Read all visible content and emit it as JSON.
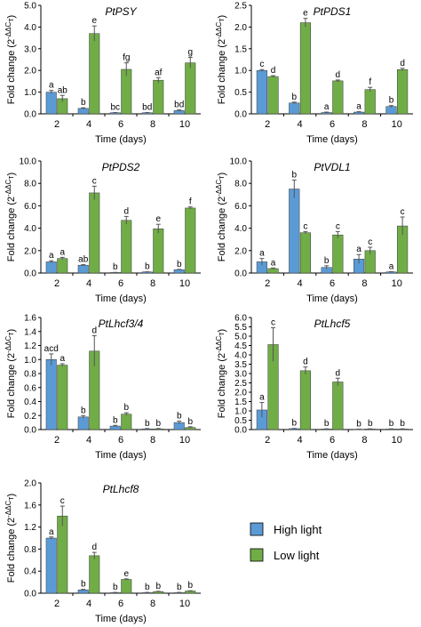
{
  "colors": {
    "high_light": "#5b9bd5",
    "low_light": "#70ad47",
    "axis": "#000000",
    "error_bar": "#555555"
  },
  "legend": {
    "items": [
      {
        "label": "High light",
        "color": "#5b9bd5"
      },
      {
        "label": "Low light",
        "color": "#70ad47"
      }
    ]
  },
  "chart_data": [
    {
      "type": "bar",
      "title": "PtPSY",
      "xlabel": "Time (days)",
      "ylabel_main": "Fold change (2",
      "ylabel_sup": "-ΔΔC",
      "ylabel_sub": "T",
      "ylabel_end": ")",
      "categories": [
        "2",
        "4",
        "6",
        "8",
        "10"
      ],
      "ylim": [
        0,
        5
      ],
      "yticks": [
        "0.0",
        "1.0",
        "2.0",
        "3.0",
        "4.0",
        "5.0"
      ],
      "series": [
        {
          "name": "High light",
          "values": [
            1.0,
            0.25,
            0.05,
            0.05,
            0.15
          ],
          "errors": [
            0.08,
            0.03,
            0.01,
            0.01,
            0.03
          ]
        },
        {
          "name": "Low light",
          "values": [
            0.7,
            3.7,
            2.05,
            1.55,
            2.35
          ],
          "errors": [
            0.15,
            0.35,
            0.3,
            0.12,
            0.25
          ]
        }
      ],
      "sig_labels": [
        "a",
        "ab",
        "b",
        "e",
        "bc",
        "fg",
        "bd",
        "af",
        "bd",
        "g"
      ]
    },
    {
      "type": "bar",
      "title": "PtPDS1",
      "xlabel": "Time (days)",
      "ylabel_main": "Fold change (2",
      "ylabel_sup": "-ΔΔC",
      "ylabel_sub": "T",
      "ylabel_end": ")",
      "categories": [
        "2",
        "4",
        "6",
        "8",
        "10"
      ],
      "ylim": [
        0,
        2.5
      ],
      "yticks": [
        "0.0",
        "0.5",
        "1.0",
        "1.5",
        "2.0",
        "2.5"
      ],
      "series": [
        {
          "name": "High light",
          "values": [
            1.0,
            0.25,
            0.03,
            0.04,
            0.17
          ],
          "errors": [
            0.02,
            0.02,
            0.01,
            0.01,
            0.02
          ]
        },
        {
          "name": "Low light",
          "values": [
            0.86,
            2.1,
            0.76,
            0.56,
            1.02
          ],
          "errors": [
            0.02,
            0.1,
            0.02,
            0.05,
            0.03
          ]
        }
      ],
      "sig_labels": [
        "c",
        "d",
        "b",
        "e",
        "a",
        "d",
        "a",
        "f",
        "b",
        "d"
      ]
    },
    {
      "type": "bar",
      "title": "PtPDS2",
      "xlabel": "Time (days)",
      "ylabel_main": "Fold change (2",
      "ylabel_sup": "-ΔΔC",
      "ylabel_sub": "T",
      "ylabel_end": ")",
      "categories": [
        "2",
        "4",
        "6",
        "8",
        "10"
      ],
      "ylim": [
        0,
        10
      ],
      "yticks": [
        "0.0",
        "2.0",
        "4.0",
        "6.0",
        "8.0",
        "10.0"
      ],
      "series": [
        {
          "name": "High light",
          "values": [
            1.0,
            0.7,
            0.05,
            0.1,
            0.3
          ],
          "errors": [
            0.1,
            0.05,
            0.01,
            0.01,
            0.03
          ]
        },
        {
          "name": "Low light",
          "values": [
            1.3,
            7.15,
            4.7,
            3.95,
            5.8
          ],
          "errors": [
            0.1,
            0.6,
            0.35,
            0.4,
            0.1
          ]
        }
      ],
      "sig_labels": [
        "a",
        "a",
        "ab",
        "c",
        "b",
        "d",
        "b",
        "e",
        "b",
        "f"
      ]
    },
    {
      "type": "bar",
      "title": "PtVDL1",
      "xlabel": "Time (days)",
      "ylabel_main": "Fold change (2",
      "ylabel_sup": "-ΔΔC",
      "ylabel_sub": "T",
      "ylabel_end": ")",
      "categories": [
        "2",
        "4",
        "6",
        "8",
        "10"
      ],
      "ylim": [
        0,
        10
      ],
      "yticks": [
        "0.0",
        "2.0",
        "4.0",
        "6.0",
        "8.0",
        "10.0"
      ],
      "series": [
        {
          "name": "High light",
          "values": [
            1.0,
            7.5,
            0.5,
            1.25,
            0.1
          ],
          "errors": [
            0.3,
            0.8,
            0.15,
            0.4,
            0.02
          ]
        },
        {
          "name": "Low light",
          "values": [
            0.4,
            3.6,
            3.4,
            2.0,
            4.2
          ],
          "errors": [
            0.05,
            0.1,
            0.3,
            0.3,
            0.8
          ]
        }
      ],
      "sig_labels": [
        "a",
        "a",
        "b",
        "c",
        "b",
        "c",
        "a",
        "c",
        "a",
        "c"
      ]
    },
    {
      "type": "bar",
      "title": "PtLhcf3/4",
      "xlabel": "Time (days)",
      "ylabel_main": "Fold change (2",
      "ylabel_sup": "-ΔΔC",
      "ylabel_sub": "T",
      "ylabel_end": ")",
      "categories": [
        "2",
        "4",
        "6",
        "8",
        "10"
      ],
      "ylim": [
        0,
        1.6
      ],
      "yticks": [
        "0.0",
        "0.2",
        "0.4",
        "0.6",
        "0.8",
        "1.0",
        "1.2",
        "1.4",
        "1.6"
      ],
      "series": [
        {
          "name": "High light",
          "values": [
            1.0,
            0.18,
            0.05,
            0.01,
            0.1
          ],
          "errors": [
            0.08,
            0.02,
            0.01,
            0.005,
            0.02
          ]
        },
        {
          "name": "Low light",
          "values": [
            0.92,
            1.12,
            0.22,
            0.01,
            0.03
          ],
          "errors": [
            0.02,
            0.22,
            0.02,
            0.005,
            0.01
          ]
        }
      ],
      "sig_labels": [
        "acd",
        "a",
        "b",
        "d",
        "b",
        "b",
        "b",
        "b",
        "b",
        "b"
      ]
    },
    {
      "type": "bar",
      "title": "PtLhcf5",
      "xlabel": "Time (days)",
      "ylabel_main": "Fold change (2",
      "ylabel_sup": "-ΔΔC",
      "ylabel_sub": "T",
      "ylabel_end": ")",
      "categories": [
        "2",
        "4",
        "6",
        "8",
        "10"
      ],
      "ylim": [
        0,
        6
      ],
      "yticks": [
        "0.0",
        "0.5",
        "1.0",
        "1.5",
        "2.0",
        "2.5",
        "3.0",
        "3.5",
        "4.0",
        "4.5",
        "5.0",
        "5.5",
        "6.0"
      ],
      "series": [
        {
          "name": "High light",
          "values": [
            1.05,
            0.05,
            0.03,
            0.02,
            0.03
          ],
          "errors": [
            0.4,
            0.01,
            0.01,
            0.005,
            0.01
          ]
        },
        {
          "name": "Low light",
          "values": [
            4.55,
            3.15,
            2.55,
            0.03,
            0.03
          ],
          "errors": [
            0.9,
            0.2,
            0.2,
            0.01,
            0.01
          ]
        }
      ],
      "sig_labels": [
        "a",
        "c",
        "b",
        "d",
        "b",
        "d",
        "b",
        "b",
        "b",
        "b"
      ]
    },
    {
      "type": "bar",
      "title": "PtLhcf8",
      "xlabel": "Time (days)",
      "ylabel_main": "Fold change (2",
      "ylabel_sup": "-ΔΔC",
      "ylabel_sub": "T",
      "ylabel_end": ")",
      "categories": [
        "2",
        "4",
        "6",
        "8",
        "10"
      ],
      "ylim": [
        0,
        2.0
      ],
      "yticks": [
        "0.0",
        "0.4",
        "0.8",
        "1.2",
        "1.6",
        "2.0"
      ],
      "series": [
        {
          "name": "High light",
          "values": [
            1.0,
            0.06,
            0.01,
            0.01,
            0.01
          ],
          "errors": [
            0.02,
            0.01,
            0.005,
            0.005,
            0.005
          ]
        },
        {
          "name": "Low light",
          "values": [
            1.4,
            0.68,
            0.25,
            0.03,
            0.04
          ],
          "errors": [
            0.18,
            0.06,
            0.01,
            0.005,
            0.005
          ]
        }
      ],
      "sig_labels": [
        "a",
        "c",
        "b",
        "d",
        "b",
        "e",
        "b",
        "b",
        "b",
        "b"
      ]
    }
  ]
}
